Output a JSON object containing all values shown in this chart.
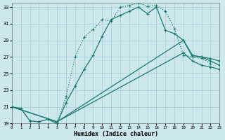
{
  "xlabel": "Humidex (Indice chaleur)",
  "bg_color": "#cce8ec",
  "grid_color": "#aaccd4",
  "line_color": "#1a7a6e",
  "xlim": [
    0,
    23
  ],
  "ylim": [
    19,
    33.5
  ],
  "xticks": [
    0,
    1,
    2,
    3,
    4,
    5,
    6,
    7,
    8,
    9,
    10,
    11,
    12,
    13,
    14,
    15,
    16,
    17,
    18,
    19,
    20,
    21,
    22,
    23
  ],
  "yticks": [
    19,
    21,
    23,
    25,
    27,
    29,
    31,
    33
  ],
  "series": [
    {
      "style": "dotted",
      "x": [
        0,
        1,
        2,
        3,
        4,
        5,
        6,
        7,
        8,
        9,
        10,
        11,
        12,
        13,
        14,
        15,
        16,
        17,
        18,
        19,
        20,
        21,
        22
      ],
      "y": [
        21.0,
        20.8,
        19.3,
        19.2,
        19.5,
        19.0,
        22.2,
        27.0,
        29.4,
        30.3,
        31.5,
        31.3,
        33.0,
        33.2,
        33.5,
        33.1,
        33.2,
        32.5,
        30.4,
        27.2,
        27.0,
        26.9,
        26.2
      ]
    },
    {
      "style": "solid",
      "x": [
        0,
        1,
        2,
        3,
        4,
        5,
        6,
        7,
        8,
        9,
        10,
        11,
        12,
        13,
        14,
        15,
        16,
        17,
        18,
        19,
        20,
        21,
        22,
        23
      ],
      "y": [
        21.0,
        20.8,
        19.3,
        19.2,
        19.5,
        19.0,
        21.5,
        23.5,
        25.5,
        27.2,
        29.5,
        31.5,
        32.0,
        32.5,
        33.0,
        32.2,
        33.0,
        30.2,
        29.8,
        29.0,
        27.0,
        27.0,
        26.8,
        26.5
      ]
    },
    {
      "style": "solid",
      "x": [
        0,
        5,
        19,
        20,
        21,
        22,
        23
      ],
      "y": [
        21.0,
        19.2,
        29.0,
        27.2,
        27.0,
        26.5,
        26.0
      ]
    },
    {
      "style": "solid",
      "x": [
        0,
        5,
        19,
        20,
        21,
        22,
        23
      ],
      "y": [
        21.0,
        19.2,
        27.5,
        26.5,
        26.0,
        25.8,
        25.5
      ]
    }
  ]
}
